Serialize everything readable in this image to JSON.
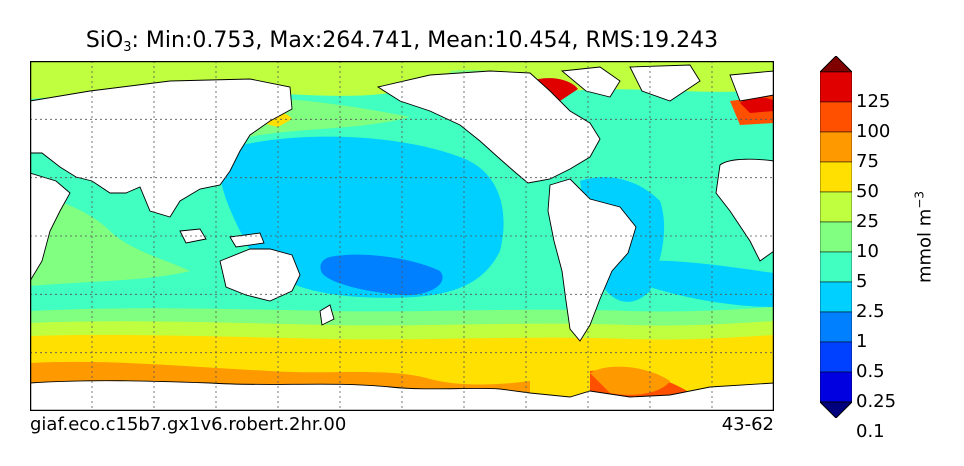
{
  "title": {
    "prefix": "SiO",
    "subscript": "3",
    "stats": ": Min:0.753, Max:264.741, Mean:10.454, RMS:19.243"
  },
  "footer": {
    "left": "giaf.eco.c15b7.gx1v6.robert.2hr.00",
    "right": "43-62"
  },
  "colorbar": {
    "title": "mmol m",
    "title_superscript": "−3",
    "extend": "both",
    "labels": [
      "0.1",
      "0.25",
      "0.5",
      "1",
      "2.5",
      "5",
      "10",
      "25",
      "50",
      "75",
      "100",
      "125"
    ],
    "colors": [
      "#00007f",
      "#0000e0",
      "#0040ff",
      "#0080ff",
      "#00d0ff",
      "#40ffc0",
      "#80ff80",
      "#c0ff40",
      "#ffe000",
      "#ff9900",
      "#ff5000",
      "#e00000",
      "#800000"
    ]
  },
  "map": {
    "projection": "cylindrical, 30E to 30E",
    "land_color": "#ffffff",
    "graticule": "dotted"
  }
}
